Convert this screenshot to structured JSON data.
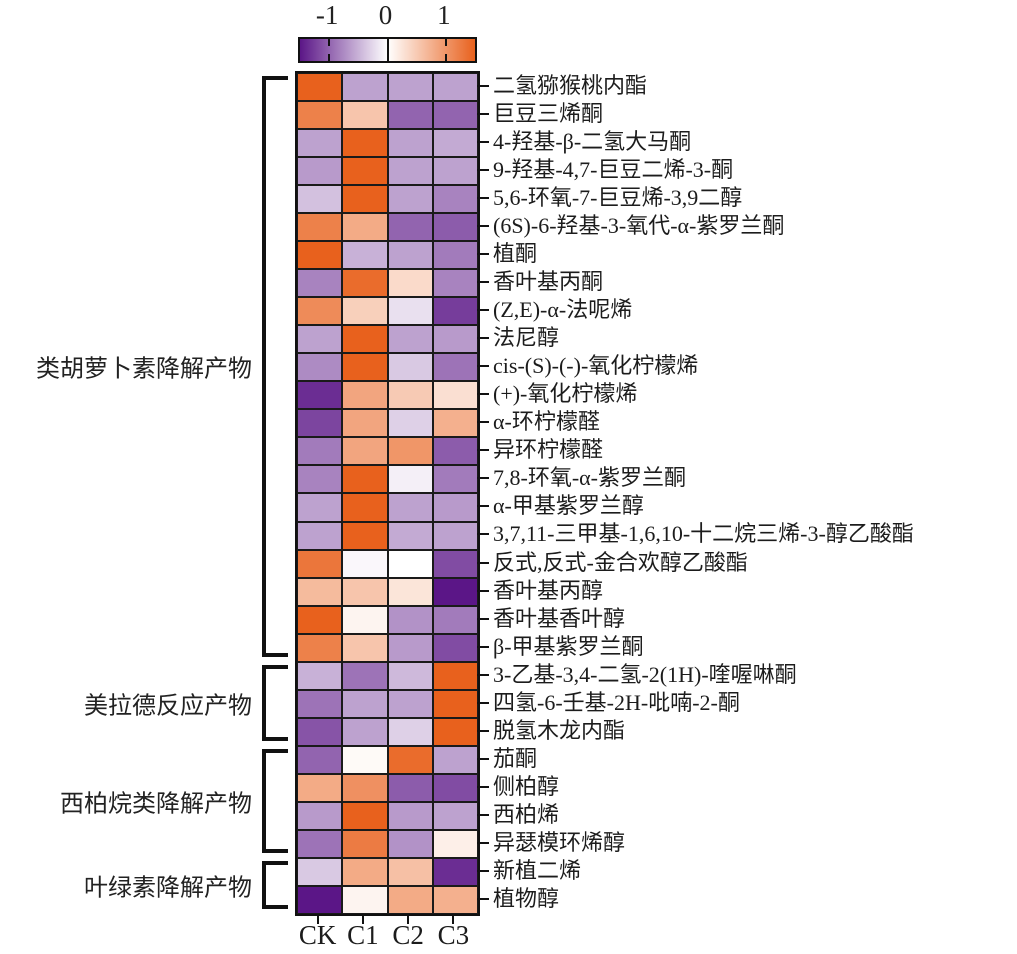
{
  "chart_data": {
    "type": "heatmap",
    "title": "",
    "legend_position": "top",
    "grid": true,
    "columns": [
      "CK",
      "C1",
      "C2",
      "C3"
    ],
    "rows": [
      "二氢猕猴桃内酯",
      "巨豆三烯酮",
      "4-羟基-β-二氢大马酮",
      "9-羟基-4,7-巨豆二烯-3-酮",
      "5,6-环氧-7-巨豆烯-3,9二醇",
      "(6S)-6-羟基-3-氧代-α-紫罗兰酮",
      "植酮",
      "香叶基丙酮",
      "(Z,E)-α-法呢烯",
      "法尼醇",
      "cis-(S)-(-)-氧化柠檬烯",
      "(+)-氧化柠檬烯",
      "α-环柠檬醛",
      "异环柠檬醛",
      "7,8-环氧-α-紫罗兰酮",
      "α-甲基紫罗兰醇",
      "3,7,11-三甲基-1,6,10-十二烷三烯-3-醇乙酸酯",
      "反式,反式-金合欢醇乙酸酯",
      "香叶基丙醇",
      "香叶基香叶醇",
      "β-甲基紫罗兰酮",
      "3-乙基-3,4-二氢-2(1H)-喹喔啉酮",
      "四氢-6-壬基-2H-吡喃-2-酮",
      "脱氢木龙内酯",
      "茄酮",
      "侧柏醇",
      "西柏烯",
      "异瑟模环烯醇",
      "新植二烯",
      "植物醇"
    ],
    "row_groups": [
      {
        "label": "类胡萝卜素降解产物",
        "start": 1,
        "end": 21
      },
      {
        "label": "美拉德反应产物",
        "start": 22,
        "end": 24
      },
      {
        "label": "西柏烷类降解产物",
        "start": 25,
        "end": 28
      },
      {
        "label": "叶绿素降解产物",
        "start": 29,
        "end": 30
      }
    ],
    "values": [
      [
        1.5,
        -0.6,
        -0.6,
        -0.6
      ],
      [
        1.2,
        0.55,
        -1.0,
        -1.0
      ],
      [
        -0.6,
        1.5,
        -0.6,
        -0.55
      ],
      [
        -0.65,
        1.5,
        -0.6,
        -0.6
      ],
      [
        -0.4,
        1.5,
        -0.6,
        -0.8
      ],
      [
        1.2,
        0.8,
        -1.0,
        -1.05
      ],
      [
        1.5,
        -0.5,
        -0.6,
        -0.85
      ],
      [
        -0.8,
        1.4,
        0.35,
        -0.8
      ],
      [
        1.1,
        0.45,
        -0.2,
        -1.25
      ],
      [
        -0.6,
        1.5,
        -0.6,
        -0.65
      ],
      [
        -0.75,
        1.5,
        -0.35,
        -0.9
      ],
      [
        -1.35,
        0.85,
        0.5,
        0.3
      ],
      [
        -1.2,
        0.85,
        -0.3,
        0.75
      ],
      [
        -0.85,
        0.85,
        1.0,
        -1.05
      ],
      [
        -0.8,
        1.5,
        -0.1,
        -0.85
      ],
      [
        -0.6,
        1.5,
        -0.6,
        -0.65
      ],
      [
        -0.6,
        1.5,
        -0.55,
        -0.6
      ],
      [
        1.3,
        -0.05,
        0.0,
        -1.15
      ],
      [
        0.65,
        0.55,
        0.25,
        -1.5
      ],
      [
        1.5,
        0.1,
        -0.7,
        -0.85
      ],
      [
        1.2,
        0.55,
        -0.65,
        -1.15
      ],
      [
        -0.5,
        -0.9,
        -0.45,
        1.5
      ],
      [
        -0.9,
        -0.6,
        -0.6,
        1.5
      ],
      [
        -1.1,
        -0.6,
        -0.3,
        1.5
      ],
      [
        -1.0,
        0.05,
        1.4,
        -0.6
      ],
      [
        0.8,
        1.05,
        -1.05,
        -1.15
      ],
      [
        -0.65,
        1.5,
        -0.65,
        -0.6
      ],
      [
        -0.9,
        1.25,
        -0.7,
        0.15
      ],
      [
        -0.35,
        0.8,
        0.6,
        -1.35
      ],
      [
        -1.5,
        0.1,
        0.8,
        0.75
      ]
    ],
    "colorbar": {
      "tick_labels": [
        "-1",
        "0",
        "1"
      ],
      "ticks": [
        -1,
        0,
        1
      ],
      "range": [
        -1.5,
        1.5
      ],
      "low_color": "#5B1687",
      "mid_color": "#FFFFFF",
      "high_color": "#E8611D"
    }
  }
}
